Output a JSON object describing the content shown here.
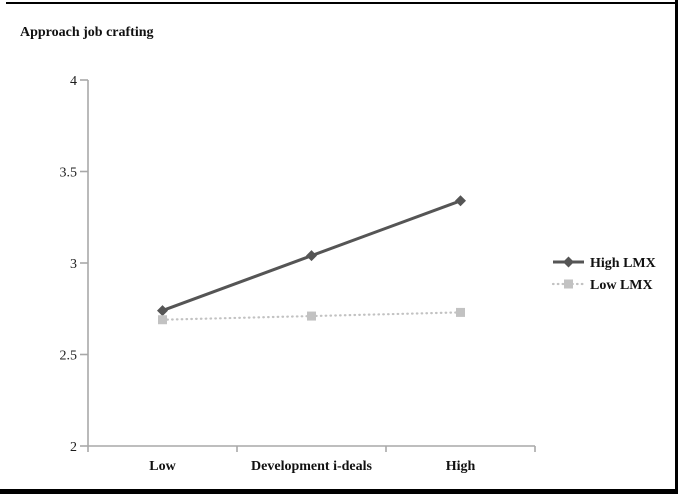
{
  "chart_data": {
    "type": "line",
    "title": "Approach job crafting",
    "categories": [
      "Low",
      "Development i-deals",
      "High"
    ],
    "series": [
      {
        "name": "High LMX",
        "values": [
          2.74,
          3.04,
          3.34
        ],
        "color": "#555555",
        "marker": "diamond",
        "line_style": "solid"
      },
      {
        "name": "Low LMX",
        "values": [
          2.69,
          2.71,
          2.73
        ],
        "color": "#c2c2c2",
        "marker": "square",
        "line_style": "dotted"
      }
    ],
    "y_ticks": [
      "4",
      "3.5",
      "3",
      "2.5",
      "2"
    ],
    "ylim": [
      2,
      4
    ],
    "xlabel": "Development i-deals",
    "ylabel": "Approach job crafting",
    "legend_position": "right",
    "grid": "off",
    "axis_color": "#a8a8a8",
    "text_color": "#1c1c1c"
  }
}
